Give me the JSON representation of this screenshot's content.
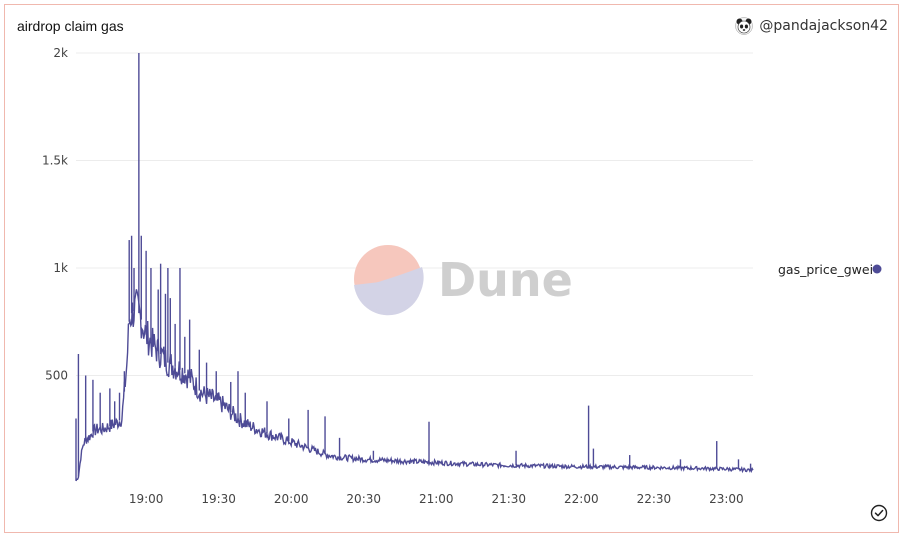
{
  "widget": {
    "title": "airdrop claim gas",
    "author": "@pandajackson42",
    "avatar_icon": "panda-avatar-icon",
    "status_icon": "checkmark-circle-icon"
  },
  "watermark": {
    "text": "Dune",
    "colors": [
      "#f6c7bd",
      "#d3d3e6"
    ]
  },
  "chart_data": {
    "type": "line",
    "title": "airdrop claim gas",
    "xlabel": "",
    "ylabel": "",
    "x_start": "18:31",
    "x_end": "23:11",
    "x_ticks": [
      "19:00",
      "19:30",
      "20:00",
      "20:30",
      "21:00",
      "21:30",
      "22:00",
      "22:30",
      "23:00"
    ],
    "x_tick_minutes": [
      1140,
      1170,
      1200,
      1230,
      1260,
      1290,
      1320,
      1350,
      1380
    ],
    "ylim": [
      0,
      2000
    ],
    "y_ticks": [
      500,
      1000,
      1500,
      2000
    ],
    "y_tick_labels": [
      "500",
      "1k",
      "1.5k",
      "2k"
    ],
    "grid": true,
    "legend_position": "right",
    "series": [
      {
        "name": "gas_price_gwei",
        "color": "#4e4b96",
        "x_minutes": [
          1111,
          1112,
          1113,
          1114,
          1115,
          1117,
          1118,
          1120,
          1122,
          1124,
          1126,
          1128,
          1130,
          1132,
          1133,
          1134,
          1135,
          1136,
          1137,
          1138,
          1139,
          1140,
          1143,
          1146,
          1149,
          1152,
          1155,
          1158,
          1160,
          1162,
          1164,
          1166,
          1168,
          1171,
          1174,
          1178,
          1182,
          1186,
          1190,
          1195,
          1200,
          1205,
          1210,
          1215,
          1220,
          1225,
          1230,
          1240,
          1250,
          1260,
          1270,
          1280,
          1290,
          1300,
          1310,
          1320,
          1330,
          1340,
          1350,
          1360,
          1370,
          1380,
          1391
        ],
        "values": [
          10,
          30,
          120,
          180,
          200,
          220,
          240,
          250,
          250,
          260,
          270,
          280,
          300,
          550,
          750,
          790,
          800,
          810,
          790,
          760,
          720,
          690,
          640,
          600,
          560,
          540,
          520,
          490,
          460,
          430,
          410,
          400,
          390,
          370,
          340,
          300,
          270,
          250,
          230,
          210,
          190,
          170,
          150,
          130,
          120,
          115,
          110,
          105,
          100,
          95,
          90,
          85,
          82,
          80,
          78,
          76,
          75,
          73,
          72,
          70,
          68,
          65,
          60
        ]
      }
    ],
    "spikes": [
      {
        "x": 1111,
        "y": 300
      },
      {
        "x": 1112,
        "y": 600
      },
      {
        "x": 1115,
        "y": 500
      },
      {
        "x": 1118,
        "y": 480
      },
      {
        "x": 1121,
        "y": 420
      },
      {
        "x": 1125,
        "y": 440
      },
      {
        "x": 1127,
        "y": 380
      },
      {
        "x": 1129,
        "y": 420
      },
      {
        "x": 1131,
        "y": 520
      },
      {
        "x": 1133,
        "y": 1130
      },
      {
        "x": 1134,
        "y": 1150
      },
      {
        "x": 1135,
        "y": 1000
      },
      {
        "x": 1137,
        "y": 2000
      },
      {
        "x": 1138,
        "y": 1150
      },
      {
        "x": 1140,
        "y": 1080
      },
      {
        "x": 1142,
        "y": 1000
      },
      {
        "x": 1145,
        "y": 900
      },
      {
        "x": 1146,
        "y": 1020
      },
      {
        "x": 1148,
        "y": 880
      },
      {
        "x": 1149,
        "y": 1000
      },
      {
        "x": 1150,
        "y": 860
      },
      {
        "x": 1152,
        "y": 740
      },
      {
        "x": 1154,
        "y": 1000
      },
      {
        "x": 1156,
        "y": 680
      },
      {
        "x": 1158,
        "y": 760
      },
      {
        "x": 1162,
        "y": 620
      },
      {
        "x": 1165,
        "y": 560
      },
      {
        "x": 1169,
        "y": 520
      },
      {
        "x": 1175,
        "y": 470
      },
      {
        "x": 1178,
        "y": 520
      },
      {
        "x": 1181,
        "y": 420
      },
      {
        "x": 1190,
        "y": 380
      },
      {
        "x": 1199,
        "y": 300
      },
      {
        "x": 1207,
        "y": 340
      },
      {
        "x": 1214,
        "y": 310
      },
      {
        "x": 1220,
        "y": 210
      },
      {
        "x": 1234,
        "y": 150
      },
      {
        "x": 1257,
        "y": 285
      },
      {
        "x": 1293,
        "y": 150
      },
      {
        "x": 1323,
        "y": 360
      },
      {
        "x": 1325,
        "y": 160
      },
      {
        "x": 1340,
        "y": 130
      },
      {
        "x": 1361,
        "y": 110
      },
      {
        "x": 1376,
        "y": 195
      },
      {
        "x": 1385,
        "y": 110
      },
      {
        "x": 1390,
        "y": 90
      }
    ]
  }
}
